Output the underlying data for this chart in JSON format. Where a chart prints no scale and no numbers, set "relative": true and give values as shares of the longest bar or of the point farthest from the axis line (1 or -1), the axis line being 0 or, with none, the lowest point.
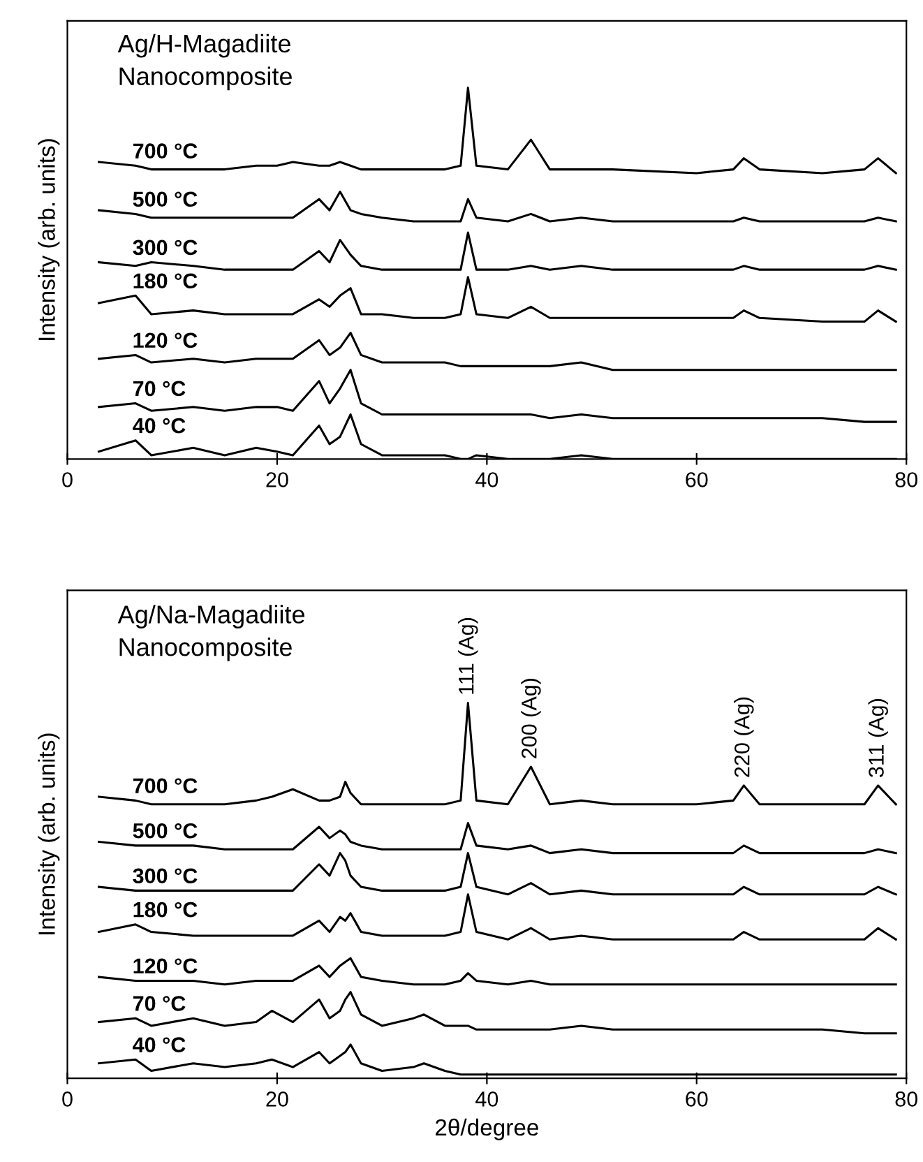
{
  "chart_data": [
    {
      "type": "line",
      "relative": true,
      "ylabel": "Intensity (arb. units)",
      "xlim": [
        0,
        80
      ],
      "xticks": [
        0,
        20,
        40,
        60,
        80
      ],
      "tick_labels": "x",
      "grid": false,
      "legend": false,
      "annotations": [
        "Ag/H-Magadiite\nNanocomposite"
      ],
      "x": [
        3,
        6.5,
        8,
        12,
        15,
        18,
        20,
        21.5,
        24,
        25,
        26,
        27,
        28,
        30,
        33,
        36,
        37.5,
        38.2,
        39,
        42,
        44.2,
        46,
        49,
        52,
        60,
        63.5,
        64.5,
        66,
        72,
        76,
        77.3,
        79
      ],
      "series": [
        {
          "name": "700 °C",
          "color": "#000000",
          "values": [
            0.8,
            0.79,
            0.78,
            0.78,
            0.78,
            0.79,
            0.79,
            0.8,
            0.79,
            0.79,
            0.8,
            0.79,
            0.78,
            0.78,
            0.78,
            0.78,
            0.79,
            1.0,
            0.79,
            0.78,
            0.86,
            0.78,
            0.78,
            0.78,
            0.77,
            0.78,
            0.81,
            0.78,
            0.77,
            0.78,
            0.81,
            0.77
          ]
        },
        {
          "name": "500 °C",
          "color": "#000000",
          "values": [
            0.67,
            0.66,
            0.65,
            0.65,
            0.65,
            0.65,
            0.65,
            0.65,
            0.7,
            0.67,
            0.72,
            0.67,
            0.66,
            0.65,
            0.64,
            0.64,
            0.64,
            0.7,
            0.65,
            0.64,
            0.66,
            0.64,
            0.65,
            0.64,
            0.64,
            0.64,
            0.65,
            0.64,
            0.64,
            0.64,
            0.65,
            0.64
          ]
        },
        {
          "name": "300 °C",
          "color": "#000000",
          "values": [
            0.53,
            0.52,
            0.53,
            0.52,
            0.51,
            0.51,
            0.51,
            0.51,
            0.56,
            0.53,
            0.59,
            0.55,
            0.52,
            0.51,
            0.51,
            0.51,
            0.51,
            0.61,
            0.51,
            0.51,
            0.52,
            0.51,
            0.52,
            0.51,
            0.51,
            0.51,
            0.52,
            0.51,
            0.51,
            0.51,
            0.52,
            0.51
          ]
        },
        {
          "name": "180 °C",
          "color": "#000000",
          "values": [
            0.42,
            0.44,
            0.39,
            0.4,
            0.39,
            0.39,
            0.39,
            0.39,
            0.43,
            0.41,
            0.44,
            0.46,
            0.39,
            0.39,
            0.38,
            0.38,
            0.39,
            0.49,
            0.39,
            0.38,
            0.41,
            0.38,
            0.38,
            0.38,
            0.38,
            0.38,
            0.4,
            0.38,
            0.37,
            0.37,
            0.4,
            0.37
          ]
        },
        {
          "name": "120 °C",
          "color": "#000000",
          "values": [
            0.27,
            0.28,
            0.26,
            0.27,
            0.26,
            0.27,
            0.27,
            0.27,
            0.32,
            0.28,
            0.3,
            0.34,
            0.28,
            0.26,
            0.26,
            0.26,
            0.25,
            0.25,
            0.25,
            0.25,
            0.25,
            0.25,
            0.26,
            0.24,
            0.24,
            0.24,
            0.24,
            0.24,
            0.24,
            0.24,
            0.24,
            0.24
          ]
        },
        {
          "name": "70 °C",
          "color": "#000000",
          "values": [
            0.14,
            0.15,
            0.13,
            0.14,
            0.13,
            0.14,
            0.14,
            0.13,
            0.21,
            0.15,
            0.19,
            0.24,
            0.15,
            0.12,
            0.12,
            0.12,
            0.12,
            0.12,
            0.12,
            0.12,
            0.12,
            0.11,
            0.12,
            0.11,
            0.11,
            0.11,
            0.11,
            0.11,
            0.11,
            0.1,
            0.1,
            0.1
          ]
        },
        {
          "name": "40 °C",
          "color": "#000000",
          "values": [
            0.02,
            0.05,
            0.01,
            0.03,
            0.01,
            0.03,
            0.02,
            0.01,
            0.09,
            0.04,
            0.06,
            0.12,
            0.04,
            0.01,
            0.01,
            0.01,
            0,
            0,
            0.01,
            0,
            0,
            0,
            0.01,
            0,
            0,
            0,
            0,
            0,
            0,
            0,
            0,
            0
          ]
        }
      ]
    },
    {
      "type": "line",
      "relative": true,
      "xlabel": "2θ/degree",
      "ylabel": "Intensity (arb. units)",
      "xlim": [
        0,
        80
      ],
      "xticks": [
        0,
        20,
        40,
        60,
        80
      ],
      "tick_labels": "x",
      "grid": false,
      "legend": false,
      "annotations": [
        "Ag/Na-Magadiite\nNanocomposite",
        {
          "text": "111 (Ag)",
          "x": 38.2,
          "y": 1.0
        },
        {
          "text": "200 (Ag)",
          "x": 44.2,
          "y": 0.83
        },
        {
          "text": "220 (Ag)",
          "x": 64.5,
          "y": 0.78
        },
        {
          "text": "311 (Ag)",
          "x": 77.3,
          "y": 0.78
        }
      ],
      "x": [
        3,
        6.5,
        8,
        12,
        15,
        18,
        19.5,
        21.5,
        24,
        25,
        26,
        26.5,
        27,
        28,
        30,
        33,
        34,
        36,
        37.5,
        38.2,
        39,
        42,
        44.2,
        46,
        49,
        52,
        60,
        63.5,
        64.5,
        66,
        72,
        76,
        77.3,
        79
      ],
      "series": [
        {
          "name": "700 °C",
          "color": "#000000",
          "values": [
            0.75,
            0.74,
            0.73,
            0.73,
            0.73,
            0.74,
            0.75,
            0.77,
            0.74,
            0.74,
            0.75,
            0.79,
            0.76,
            0.73,
            0.73,
            0.73,
            0.73,
            0.73,
            0.74,
            1.0,
            0.74,
            0.73,
            0.83,
            0.73,
            0.74,
            0.73,
            0.73,
            0.74,
            0.78,
            0.73,
            0.73,
            0.73,
            0.78,
            0.73
          ]
        },
        {
          "name": "500 °C",
          "color": "#000000",
          "values": [
            0.63,
            0.62,
            0.62,
            0.62,
            0.61,
            0.61,
            0.61,
            0.61,
            0.67,
            0.64,
            0.66,
            0.65,
            0.63,
            0.62,
            0.61,
            0.61,
            0.61,
            0.61,
            0.61,
            0.68,
            0.62,
            0.61,
            0.62,
            0.6,
            0.61,
            0.6,
            0.6,
            0.6,
            0.62,
            0.6,
            0.6,
            0.6,
            0.61,
            0.6
          ]
        },
        {
          "name": "300 °C",
          "color": "#000000",
          "values": [
            0.51,
            0.5,
            0.5,
            0.5,
            0.5,
            0.5,
            0.5,
            0.5,
            0.57,
            0.54,
            0.6,
            0.58,
            0.54,
            0.51,
            0.5,
            0.5,
            0.5,
            0.5,
            0.51,
            0.6,
            0.51,
            0.49,
            0.52,
            0.49,
            0.5,
            0.49,
            0.49,
            0.49,
            0.51,
            0.49,
            0.49,
            0.49,
            0.51,
            0.49
          ]
        },
        {
          "name": "180 °C",
          "color": "#000000",
          "values": [
            0.39,
            0.41,
            0.39,
            0.38,
            0.38,
            0.38,
            0.38,
            0.38,
            0.42,
            0.39,
            0.43,
            0.42,
            0.44,
            0.39,
            0.38,
            0.38,
            0.38,
            0.38,
            0.39,
            0.49,
            0.39,
            0.37,
            0.4,
            0.37,
            0.38,
            0.37,
            0.37,
            0.37,
            0.39,
            0.37,
            0.37,
            0.37,
            0.4,
            0.37
          ]
        },
        {
          "name": "120 °C",
          "color": "#000000",
          "values": [
            0.27,
            0.26,
            0.26,
            0.26,
            0.25,
            0.26,
            0.26,
            0.26,
            0.3,
            0.27,
            0.3,
            0.31,
            0.32,
            0.27,
            0.26,
            0.25,
            0.25,
            0.25,
            0.26,
            0.28,
            0.26,
            0.25,
            0.26,
            0.25,
            0.25,
            0.25,
            0.25,
            0.25,
            0.25,
            0.25,
            0.25,
            0.25,
            0.25,
            0.25
          ]
        },
        {
          "name": "70 °C",
          "color": "#000000",
          "values": [
            0.15,
            0.16,
            0.14,
            0.16,
            0.14,
            0.15,
            0.18,
            0.15,
            0.21,
            0.16,
            0.18,
            0.21,
            0.23,
            0.17,
            0.14,
            0.16,
            0.17,
            0.14,
            0.14,
            0.14,
            0.13,
            0.13,
            0.13,
            0.13,
            0.14,
            0.13,
            0.13,
            0.13,
            0.13,
            0.13,
            0.13,
            0.12,
            0.12,
            0.12
          ]
        },
        {
          "name": "40 °C",
          "color": "#000000",
          "values": [
            0.04,
            0.05,
            0.02,
            0.04,
            0.03,
            0.04,
            0.05,
            0.03,
            0.07,
            0.04,
            0.06,
            0.07,
            0.09,
            0.04,
            0.02,
            0.03,
            0.04,
            0.02,
            0.01,
            0.01,
            0.01,
            0.01,
            0.01,
            0.01,
            0.01,
            0.01,
            0.01,
            0.01,
            0.01,
            0.01,
            0.01,
            0.01,
            0.01,
            0.01
          ]
        }
      ]
    }
  ]
}
